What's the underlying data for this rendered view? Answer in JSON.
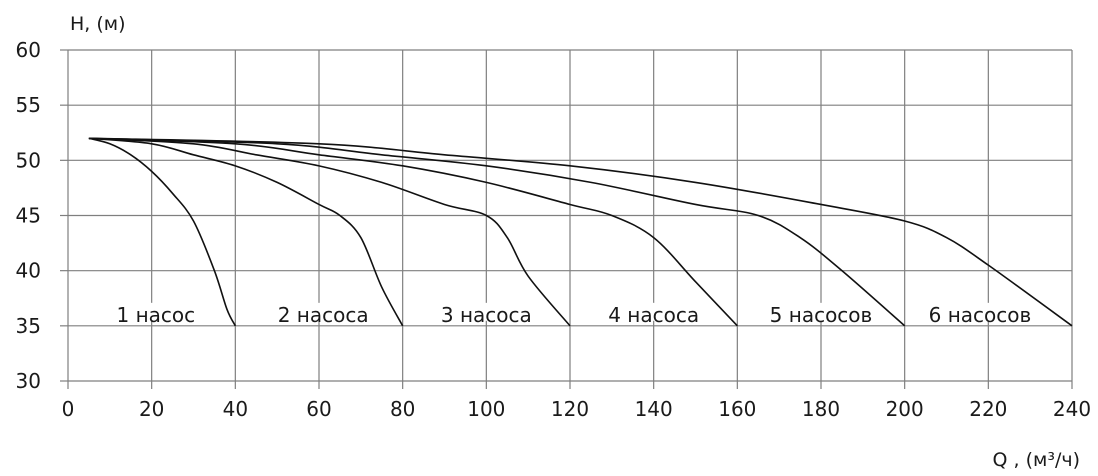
{
  "chart_data": {
    "type": "line",
    "ylabel": "H, (м)",
    "xlabel": "Q , (м³/ч)",
    "xlim": [
      0,
      240
    ],
    "ylim": [
      30,
      60
    ],
    "xticks": [
      0,
      20,
      40,
      60,
      80,
      100,
      120,
      140,
      160,
      180,
      200,
      220,
      240
    ],
    "yticks": [
      30,
      35,
      40,
      45,
      50,
      55,
      60
    ],
    "grid": true,
    "series": [
      {
        "name": "1 насос",
        "x": [
          5,
          10,
          15,
          20,
          25,
          30,
          35,
          38,
          40
        ],
        "y": [
          52,
          51.5,
          50.5,
          49,
          47,
          44.5,
          40,
          36.5,
          35
        ],
        "label_at": [
          21,
          35
        ]
      },
      {
        "name": "2 насоса",
        "x": [
          5,
          20,
          30,
          40,
          50,
          60,
          65,
          70,
          75,
          80
        ],
        "y": [
          52,
          51.5,
          50.5,
          49.5,
          48,
          46,
          45,
          43,
          38.5,
          35
        ],
        "label_at": [
          61,
          35
        ]
      },
      {
        "name": "3 насоса",
        "x": [
          5,
          30,
          45,
          60,
          75,
          90,
          100,
          105,
          110,
          120
        ],
        "y": [
          52,
          51.5,
          50.5,
          49.5,
          48,
          46,
          45,
          43,
          39.5,
          35
        ],
        "label_at": [
          100,
          35
        ]
      },
      {
        "name": "4 насоса",
        "x": [
          5,
          40,
          60,
          80,
          100,
          120,
          130,
          140,
          150,
          160
        ],
        "y": [
          52,
          51.5,
          50.5,
          49.5,
          48,
          46,
          45,
          43,
          39,
          35
        ],
        "label_at": [
          140,
          35
        ]
      },
      {
        "name": "5 насосов",
        "x": [
          5,
          50,
          75,
          100,
          125,
          150,
          165,
          175,
          185,
          200
        ],
        "y": [
          52,
          51.5,
          50.5,
          49.5,
          48,
          46,
          45,
          43,
          40,
          35
        ],
        "label_at": [
          180,
          35
        ]
      },
      {
        "name": "6 насосов",
        "x": [
          5,
          60,
          90,
          120,
          150,
          180,
          200,
          210,
          220,
          240
        ],
        "y": [
          52,
          51.5,
          50.5,
          49.5,
          48,
          46,
          44.5,
          43,
          40.5,
          35
        ],
        "label_at": [
          218,
          35
        ]
      }
    ]
  }
}
